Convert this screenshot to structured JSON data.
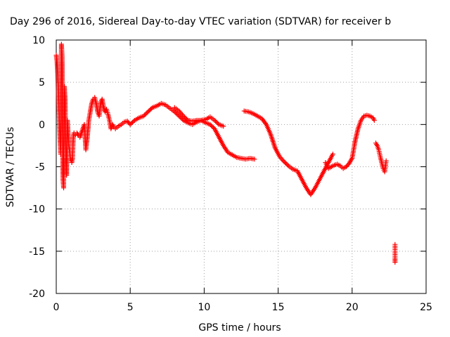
{
  "chart_data": {
    "type": "scatter",
    "title": "Day 296 of 2016, Sidereal Day-to-day VTEC variation (SDTVAR) for receiver b",
    "xlabel": "GPS time / hours",
    "ylabel": "SDTVAR / TECUs",
    "xlim": [
      0,
      25
    ],
    "ylim": [
      -20,
      10
    ],
    "xticks": [
      0,
      5,
      10,
      15,
      20,
      25
    ],
    "yticks": [
      -20,
      -15,
      -10,
      -5,
      0,
      5,
      10
    ],
    "xtick_labels": [
      "0",
      "5",
      "10",
      "15",
      "20",
      "25"
    ],
    "ytick_labels": [
      "-20",
      "-15",
      "-10",
      "-5",
      "0",
      "5",
      "10"
    ],
    "grid": true,
    "marker": "+",
    "marker_color": "#ff0000",
    "series": [
      {
        "x": [
          0.0,
          0.05,
          0.1,
          0.15,
          0.2,
          0.25,
          0.3,
          0.35,
          0.4,
          0.45,
          0.5,
          0.55,
          0.6,
          0.65,
          0.7,
          0.75,
          0.8,
          0.85,
          0.9,
          0.95,
          1.0,
          1.05,
          1.1,
          1.15,
          1.2,
          1.3,
          1.4,
          1.5,
          1.6,
          1.7,
          1.8,
          1.9,
          2.0,
          2.1,
          2.2,
          2.3,
          2.4,
          2.5,
          2.6,
          2.7,
          2.8,
          2.9,
          3.0,
          3.1,
          3.2,
          3.3,
          3.4,
          3.5,
          3.6,
          3.7,
          3.8,
          3.9,
          4.0,
          4.2,
          4.4,
          4.6,
          4.8,
          5.0,
          5.3,
          5.6,
          5.9,
          6.2,
          6.5,
          6.8,
          7.1,
          7.4,
          7.7,
          8.0,
          8.3,
          8.6,
          8.9,
          9.2,
          9.5,
          9.8,
          10.1,
          10.4,
          10.7,
          11.0,
          11.3,
          11.6,
          11.9,
          12.2,
          12.5,
          12.8,
          13.1,
          13.4
        ],
        "y": [
          8.2,
          7.5,
          6.0,
          3.5,
          1.0,
          -1.5,
          -3.5,
          9.5,
          8.0,
          -6.5,
          -7.5,
          4.5,
          3.0,
          -4.0,
          -6.0,
          0.5,
          -1.0,
          -2.5,
          -3.0,
          -4.0,
          -4.2,
          -4.5,
          -4.0,
          -1.5,
          -1.0,
          -1.2,
          -1.0,
          -1.3,
          -1.5,
          -1.0,
          -0.5,
          0.0,
          -3.0,
          -1.5,
          0.5,
          1.5,
          2.5,
          3.0,
          3.2,
          2.5,
          1.5,
          1.0,
          2.5,
          3.0,
          2.0,
          1.5,
          1.8,
          1.2,
          0.5,
          -0.5,
          0.0,
          -0.3,
          -0.5,
          -0.2,
          0.0,
          0.3,
          0.4,
          0.0,
          0.5,
          0.8,
          1.0,
          1.5,
          2.0,
          2.2,
          2.5,
          2.3,
          1.9,
          1.5,
          1.0,
          0.5,
          0.2,
          0.0,
          0.3,
          0.5,
          0.2,
          0.0,
          -0.5,
          -1.5,
          -2.5,
          -3.3,
          -3.6,
          -3.9,
          -4.0,
          -4.1,
          -4.0,
          -4.1
        ]
      },
      {
        "x": [
          8.0,
          8.3,
          8.6,
          8.9,
          9.2,
          9.5,
          9.8,
          10.1,
          10.4,
          10.7,
          11.0,
          11.3
        ],
        "y": [
          2.0,
          1.6,
          1.0,
          0.5,
          0.4,
          0.5,
          0.5,
          0.6,
          0.9,
          0.5,
          0.0,
          -0.2
        ]
      },
      {
        "x": [
          12.7,
          13.0,
          13.3,
          13.6,
          13.9,
          14.2,
          14.5,
          14.8,
          15.1,
          15.4,
          15.7,
          16.0,
          16.3,
          16.6,
          16.9,
          17.2,
          17.5,
          17.8,
          18.1,
          18.4,
          18.7
        ],
        "y": [
          1.6,
          1.5,
          1.3,
          1.0,
          0.7,
          0.0,
          -1.2,
          -2.8,
          -3.8,
          -4.4,
          -4.9,
          -5.3,
          -5.5,
          -6.5,
          -7.5,
          -8.3,
          -7.5,
          -6.5,
          -5.5,
          -4.5,
          -3.5
        ]
      },
      {
        "x": [
          18.2,
          18.4,
          18.6,
          18.8,
          19.0,
          19.2,
          19.4,
          19.6,
          19.8,
          20.0,
          20.2,
          20.4,
          20.6,
          20.8,
          21.0,
          21.2,
          21.4,
          21.5
        ],
        "y": [
          -4.5,
          -5.2,
          -5.0,
          -4.8,
          -4.7,
          -4.9,
          -5.2,
          -5.0,
          -4.6,
          -4.0,
          -2.0,
          -0.5,
          0.5,
          1.0,
          1.1,
          1.0,
          0.8,
          0.5
        ]
      },
      {
        "x": [
          21.6,
          21.7,
          21.8,
          21.9,
          22.0,
          22.1,
          22.2,
          22.3
        ],
        "y": [
          -2.2,
          -2.5,
          -3.0,
          -3.8,
          -4.5,
          -5.2,
          -5.6,
          -4.3
        ]
      },
      {
        "x": [
          22.9,
          22.9,
          22.9,
          22.9,
          22.9,
          22.9
        ],
        "y": [
          -14.2,
          -14.6,
          -15.0,
          -15.4,
          -15.8,
          -16.3
        ]
      }
    ]
  }
}
